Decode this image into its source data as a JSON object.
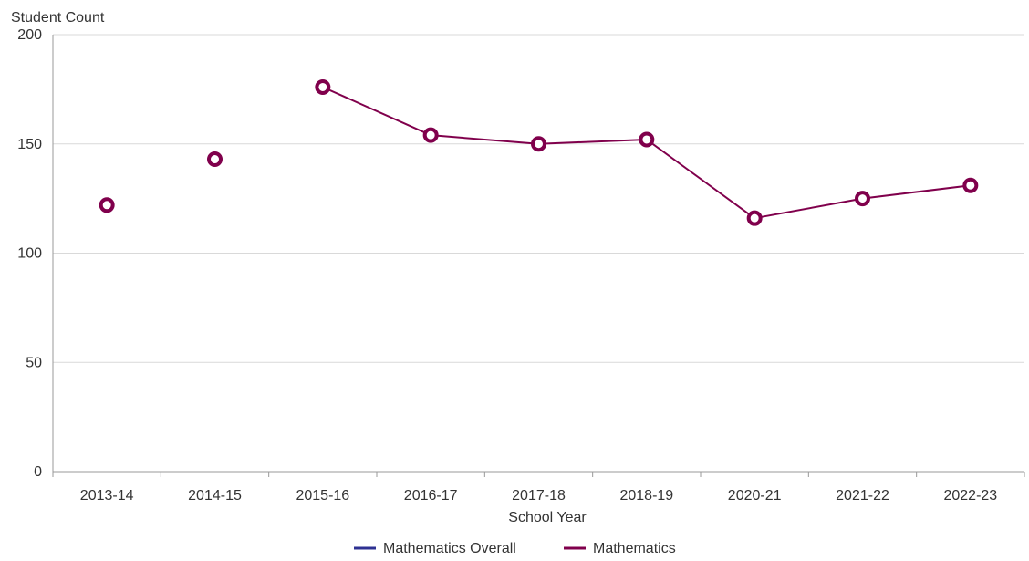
{
  "chart_data": {
    "type": "line",
    "title": "",
    "ylabel": "Student Count",
    "xlabel": "School Year",
    "categories": [
      "2013-14",
      "2014-15",
      "2015-16",
      "2016-17",
      "2017-18",
      "2018-19",
      "2020-21",
      "2021-22",
      "2022-23"
    ],
    "ylim": [
      0,
      200
    ],
    "yticks": [
      0,
      50,
      100,
      150,
      200
    ],
    "grid": "horizontal",
    "legend_position": "bottom-center",
    "series": [
      {
        "name": "Mathematics Overall",
        "color": "#2e3192",
        "values": [
          null,
          null,
          null,
          null,
          null,
          null,
          null,
          null,
          null
        ]
      },
      {
        "name": "Mathematics",
        "color": "#80004c",
        "values": [
          122,
          143,
          176,
          154,
          150,
          152,
          116,
          125,
          131
        ],
        "marker": "hollow-circle"
      }
    ]
  }
}
